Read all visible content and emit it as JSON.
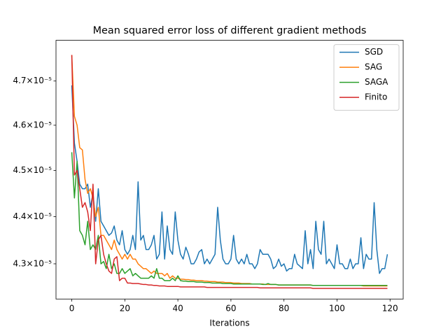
{
  "chart_data": {
    "type": "line",
    "title": "Mean squared error loss of different gradient methods",
    "xlabel": "Iterations",
    "x": [
      0,
      1,
      2,
      3,
      4,
      5,
      6,
      7,
      8,
      9,
      10,
      11,
      12,
      13,
      14,
      15,
      16,
      17,
      18,
      19,
      20,
      21,
      22,
      23,
      24,
      25,
      26,
      27,
      28,
      29,
      30,
      31,
      32,
      33,
      34,
      35,
      36,
      37,
      38,
      39,
      40,
      41,
      42,
      43,
      44,
      45,
      46,
      47,
      48,
      49,
      50,
      51,
      52,
      53,
      54,
      55,
      56,
      57,
      58,
      59,
      60,
      61,
      62,
      63,
      64,
      65,
      66,
      67,
      68,
      69,
      70,
      71,
      72,
      73,
      74,
      75,
      76,
      77,
      78,
      79,
      80,
      81,
      82,
      83,
      84,
      85,
      86,
      87,
      88,
      89,
      90,
      91,
      92,
      93,
      94,
      95,
      96,
      97,
      98,
      99,
      100,
      101,
      102,
      103,
      104,
      105,
      106,
      107,
      108,
      109,
      110,
      111,
      112,
      113,
      114,
      115,
      116,
      117,
      118,
      119
    ],
    "series": [
      {
        "name": "SGD",
        "color": "#1f77b4",
        "values": [
          4.69e-05,
          4.56e-05,
          4.52e-05,
          4.47e-05,
          4.46e-05,
          4.46e-05,
          4.47e-05,
          4.42e-05,
          4.45e-05,
          4.39e-05,
          4.46e-05,
          4.39e-05,
          4.38e-05,
          4.37e-05,
          4.36e-05,
          4.365e-05,
          4.38e-05,
          4.35e-05,
          4.34e-05,
          4.37e-05,
          4.33e-05,
          4.32e-05,
          4.33e-05,
          4.36e-05,
          4.33e-05,
          4.475e-05,
          4.35e-05,
          4.36e-05,
          4.33e-05,
          4.33e-05,
          4.34e-05,
          4.36e-05,
          4.31e-05,
          4.32e-05,
          4.41e-05,
          4.31e-05,
          4.38e-05,
          4.33e-05,
          4.32e-05,
          4.41e-05,
          4.35e-05,
          4.32e-05,
          4.31e-05,
          4.335e-05,
          4.32e-05,
          4.3e-05,
          4.3e-05,
          4.31e-05,
          4.325e-05,
          4.33e-05,
          4.3e-05,
          4.31e-05,
          4.3e-05,
          4.31e-05,
          4.32e-05,
          4.42e-05,
          4.35e-05,
          4.31e-05,
          4.3e-05,
          4.3e-05,
          4.31e-05,
          4.36e-05,
          4.31e-05,
          4.3e-05,
          4.31e-05,
          4.3e-05,
          4.32e-05,
          4.3e-05,
          4.3e-05,
          4.29e-05,
          4.3e-05,
          4.33e-05,
          4.32e-05,
          4.32e-05,
          4.32e-05,
          4.31e-05,
          4.29e-05,
          4.295e-05,
          4.31e-05,
          4.295e-05,
          4.3e-05,
          4.285e-05,
          4.29e-05,
          4.29e-05,
          4.32e-05,
          4.3e-05,
          4.295e-05,
          4.29e-05,
          4.37e-05,
          4.3e-05,
          4.33e-05,
          4.29e-05,
          4.39e-05,
          4.33e-05,
          4.32e-05,
          4.39e-05,
          4.3e-05,
          4.31e-05,
          4.3e-05,
          4.29e-05,
          4.34e-05,
          4.3e-05,
          4.3e-05,
          4.29e-05,
          4.29e-05,
          4.31e-05,
          4.29e-05,
          4.3e-05,
          4.3e-05,
          4.355e-05,
          4.29e-05,
          4.32e-05,
          4.31e-05,
          4.31e-05,
          4.43e-05,
          4.33e-05,
          4.28e-05,
          4.29e-05,
          4.29e-05,
          4.32e-05
        ]
      },
      {
        "name": "SAG",
        "color": "#ff7f0e",
        "values": [
          4.76e-05,
          4.62e-05,
          4.6e-05,
          4.55e-05,
          4.545e-05,
          4.48e-05,
          4.45e-05,
          4.46e-05,
          4.44e-05,
          4.4e-05,
          4.42e-05,
          4.36e-05,
          4.36e-05,
          4.35e-05,
          4.34e-05,
          4.33e-05,
          4.35e-05,
          4.33e-05,
          4.32e-05,
          4.31e-05,
          4.32e-05,
          4.31e-05,
          4.32e-05,
          4.31e-05,
          4.31e-05,
          4.3e-05,
          4.295e-05,
          4.29e-05,
          4.29e-05,
          4.285e-05,
          4.28e-05,
          4.285e-05,
          4.28e-05,
          4.28e-05,
          4.28e-05,
          4.275e-05,
          4.28e-05,
          4.27e-05,
          4.275e-05,
          4.27e-05,
          4.27e-05,
          4.268e-05,
          4.268e-05,
          4.267e-05,
          4.267e-05,
          4.266e-05,
          4.266e-05,
          4.265e-05,
          4.265e-05,
          4.265e-05,
          4.264e-05,
          4.264e-05,
          4.263e-05,
          4.263e-05,
          4.263e-05,
          4.262e-05,
          4.262e-05,
          4.262e-05,
          4.261e-05,
          4.261e-05,
          4.261e-05,
          4.26e-05,
          4.26e-05,
          4.26e-05,
          4.259e-05,
          4.259e-05,
          4.259e-05,
          4.259e-05,
          4.258e-05,
          4.258e-05,
          4.258e-05,
          4.258e-05,
          4.258e-05,
          4.257e-05,
          4.257e-05,
          4.257e-05,
          4.257e-05,
          4.257e-05,
          4.256e-05,
          4.256e-05,
          4.256e-05,
          4.256e-05,
          4.256e-05,
          4.256e-05,
          4.256e-05,
          4.256e-05,
          4.256e-05,
          4.256e-05,
          4.256e-05,
          4.256e-05,
          4.256e-05,
          4.255e-05,
          4.255e-05,
          4.255e-05,
          4.255e-05,
          4.255e-05,
          4.255e-05,
          4.255e-05,
          4.255e-05,
          4.255e-05,
          4.255e-05,
          4.255e-05,
          4.255e-05,
          4.255e-05,
          4.255e-05,
          4.255e-05,
          4.255e-05,
          4.255e-05,
          4.255e-05,
          4.255e-05,
          4.254e-05,
          4.254e-05,
          4.254e-05,
          4.254e-05,
          4.254e-05,
          4.254e-05,
          4.254e-05,
          4.254e-05,
          4.254e-05,
          4.254e-05
        ]
      },
      {
        "name": "SAGA",
        "color": "#2ca02c",
        "values": [
          4.54e-05,
          4.44e-05,
          4.52e-05,
          4.37e-05,
          4.36e-05,
          4.34e-05,
          4.39e-05,
          4.33e-05,
          4.34e-05,
          4.33e-05,
          4.36e-05,
          4.3e-05,
          4.305e-05,
          4.29e-05,
          4.32e-05,
          4.29e-05,
          4.3e-05,
          4.28e-05,
          4.28e-05,
          4.29e-05,
          4.28e-05,
          4.285e-05,
          4.29e-05,
          4.275e-05,
          4.28e-05,
          4.275e-05,
          4.27e-05,
          4.27e-05,
          4.27e-05,
          4.27e-05,
          4.275e-05,
          4.27e-05,
          4.29e-05,
          4.27e-05,
          4.27e-05,
          4.265e-05,
          4.265e-05,
          4.265e-05,
          4.27e-05,
          4.265e-05,
          4.275e-05,
          4.265e-05,
          4.264e-05,
          4.264e-05,
          4.263e-05,
          4.263e-05,
          4.263e-05,
          4.262e-05,
          4.262e-05,
          4.262e-05,
          4.261e-05,
          4.261e-05,
          4.261e-05,
          4.26e-05,
          4.26e-05,
          4.26e-05,
          4.26e-05,
          4.259e-05,
          4.259e-05,
          4.259e-05,
          4.259e-05,
          4.258e-05,
          4.258e-05,
          4.258e-05,
          4.258e-05,
          4.258e-05,
          4.258e-05,
          4.258e-05,
          4.258e-05,
          4.258e-05,
          4.258e-05,
          4.258e-05,
          4.257e-05,
          4.257e-05,
          4.259e-05,
          4.257e-05,
          4.257e-05,
          4.257e-05,
          4.256e-05,
          4.256e-05,
          4.256e-05,
          4.256e-05,
          4.256e-05,
          4.256e-05,
          4.256e-05,
          4.256e-05,
          4.256e-05,
          4.256e-05,
          4.256e-05,
          4.256e-05,
          4.256e-05,
          4.255e-05,
          4.255e-05,
          4.255e-05,
          4.255e-05,
          4.255e-05,
          4.255e-05,
          4.255e-05,
          4.255e-05,
          4.255e-05,
          4.255e-05,
          4.255e-05,
          4.255e-05,
          4.255e-05,
          4.255e-05,
          4.255e-05,
          4.255e-05,
          4.255e-05,
          4.255e-05,
          4.255e-05,
          4.255e-05,
          4.255e-05,
          4.255e-05,
          4.255e-05,
          4.255e-05,
          4.255e-05,
          4.255e-05,
          4.255e-05,
          4.255e-05,
          4.255e-05
        ]
      },
      {
        "name": "Finito",
        "color": "#d62728",
        "values": [
          4.76e-05,
          4.49e-05,
          4.5e-05,
          4.46e-05,
          4.42e-05,
          4.43e-05,
          4.41e-05,
          4.37e-05,
          4.47e-05,
          4.3e-05,
          4.35e-05,
          4.36e-05,
          4.32e-05,
          4.3e-05,
          4.285e-05,
          4.28e-05,
          4.31e-05,
          4.315e-05,
          4.265e-05,
          4.27e-05,
          4.27e-05,
          4.26e-05,
          4.26e-05,
          4.259e-05,
          4.259e-05,
          4.259e-05,
          4.258e-05,
          4.257e-05,
          4.257e-05,
          4.256e-05,
          4.256e-05,
          4.255e-05,
          4.255e-05,
          4.254e-05,
          4.254e-05,
          4.254e-05,
          4.253e-05,
          4.253e-05,
          4.253e-05,
          4.253e-05,
          4.253e-05,
          4.252e-05,
          4.252e-05,
          4.252e-05,
          4.252e-05,
          4.252e-05,
          4.252e-05,
          4.252e-05,
          4.252e-05,
          4.252e-05,
          4.252e-05,
          4.251e-05,
          4.251e-05,
          4.251e-05,
          4.251e-05,
          4.251e-05,
          4.251e-05,
          4.251e-05,
          4.251e-05,
          4.251e-05,
          4.251e-05,
          4.251e-05,
          4.251e-05,
          4.251e-05,
          4.251e-05,
          4.251e-05,
          4.251e-05,
          4.251e-05,
          4.251e-05,
          4.251e-05,
          4.251e-05,
          4.25e-05,
          4.25e-05,
          4.25e-05,
          4.25e-05,
          4.25e-05,
          4.25e-05,
          4.25e-05,
          4.25e-05,
          4.25e-05,
          4.25e-05,
          4.25e-05,
          4.25e-05,
          4.25e-05,
          4.25e-05,
          4.25e-05,
          4.25e-05,
          4.25e-05,
          4.25e-05,
          4.25e-05,
          4.25e-05,
          4.249e-05,
          4.249e-05,
          4.249e-05,
          4.249e-05,
          4.249e-05,
          4.249e-05,
          4.249e-05,
          4.249e-05,
          4.249e-05,
          4.249e-05,
          4.249e-05,
          4.249e-05,
          4.249e-05,
          4.249e-05,
          4.249e-05,
          4.249e-05,
          4.249e-05,
          4.249e-05,
          4.249e-05,
          4.249e-05,
          4.249e-05,
          4.249e-05,
          4.249e-05,
          4.249e-05,
          4.249e-05,
          4.249e-05,
          4.249e-05,
          4.249e-05,
          4.249e-05
        ]
      }
    ],
    "xlim": [
      -5.95,
      124.95
    ],
    "xticks": [
      0,
      20,
      40,
      60,
      80,
      100,
      120
    ],
    "ylim": [
      4.227e-05,
      4.794e-05
    ],
    "yscale": "log",
    "yticks": [
      {
        "value": 4.3e-05,
        "label": "4.3×10⁻⁵"
      },
      {
        "value": 4.4e-05,
        "label": "4.4×10⁻⁵"
      },
      {
        "value": 4.5e-05,
        "label": "4.5×10⁻⁵"
      },
      {
        "value": 4.6e-05,
        "label": "4.6×10⁻⁵"
      },
      {
        "value": 4.7e-05,
        "label": "4.7×10⁻⁵"
      }
    ],
    "grid": false,
    "legend": "upper right"
  }
}
